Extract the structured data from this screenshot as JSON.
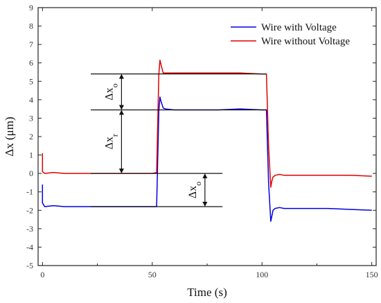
{
  "chart_data": {
    "type": "line",
    "xlabel": "Time (s)",
    "ylabel": "Δx (μm)",
    "xlim": [
      -2,
      152
    ],
    "ylim": [
      -5,
      9
    ],
    "xticks": [
      0,
      50,
      100,
      150
    ],
    "yticks": [
      -5,
      -4,
      -3,
      -2,
      -1,
      0,
      1,
      2,
      3,
      4,
      5,
      6,
      7,
      8,
      9
    ],
    "grid": false,
    "legend_position": "top-right",
    "series": [
      {
        "name": "Wire with Voltage",
        "color": "#0000e0",
        "x": [
          0,
          0,
          0.5,
          1,
          5,
          10,
          20,
          30,
          40,
          50,
          52,
          53,
          53.5,
          54,
          55,
          56,
          60,
          70,
          80,
          90,
          100,
          102,
          103,
          104,
          104.5,
          105,
          106,
          108,
          110,
          120,
          130,
          140,
          150
        ],
        "y": [
          -0.6,
          -1.6,
          -1.7,
          -1.8,
          -1.75,
          -1.8,
          -1.8,
          -1.8,
          -1.8,
          -1.8,
          -1.8,
          3.4,
          4.15,
          3.9,
          3.55,
          3.5,
          3.45,
          3.45,
          3.45,
          3.5,
          3.45,
          3.45,
          -0.5,
          -2.6,
          -2.3,
          -2.0,
          -1.9,
          -1.85,
          -1.9,
          -1.9,
          -1.9,
          -1.95,
          -2.0
        ]
      },
      {
        "name": "Wire without Voltage",
        "color": "#e00000",
        "x": [
          0,
          0,
          0.5,
          1,
          5,
          10,
          20,
          30,
          40,
          50,
          52,
          53,
          53.5,
          54,
          55,
          56,
          60,
          70,
          80,
          90,
          100,
          102,
          103,
          104,
          104.5,
          105,
          106,
          108,
          110,
          120,
          130,
          140,
          150
        ],
        "y": [
          1.1,
          0.1,
          0.05,
          0.0,
          0.05,
          0.0,
          0.0,
          0.0,
          0.0,
          0.0,
          0.05,
          5.4,
          6.15,
          5.9,
          5.45,
          5.45,
          5.45,
          5.45,
          5.45,
          5.45,
          5.4,
          5.4,
          1.5,
          -0.75,
          -0.4,
          -0.2,
          -0.1,
          -0.05,
          -0.1,
          -0.1,
          -0.1,
          -0.1,
          -0.15
        ]
      }
    ],
    "annotations": {
      "reference_lines": [
        {
          "y": 5.4,
          "x_from": 22,
          "x_to": 102
        },
        {
          "y": 3.45,
          "x_from": 22,
          "x_to": 102
        },
        {
          "y": 0,
          "x_from": 22,
          "x_to": 82
        },
        {
          "y": -1.8,
          "x_from": 22,
          "x_to": 82
        }
      ],
      "arrows": [
        {
          "x": 36,
          "y_from": 5.4,
          "y_to": 3.45,
          "label_main": "Δx",
          "label_sub": "o"
        },
        {
          "x": 36,
          "y_from": 3.45,
          "y_to": 0,
          "label_main": "Δx",
          "label_sub": "r"
        },
        {
          "x": 74,
          "y_from": 0,
          "y_to": -1.8,
          "label_main": "Δx",
          "label_sub": "o"
        }
      ]
    }
  }
}
